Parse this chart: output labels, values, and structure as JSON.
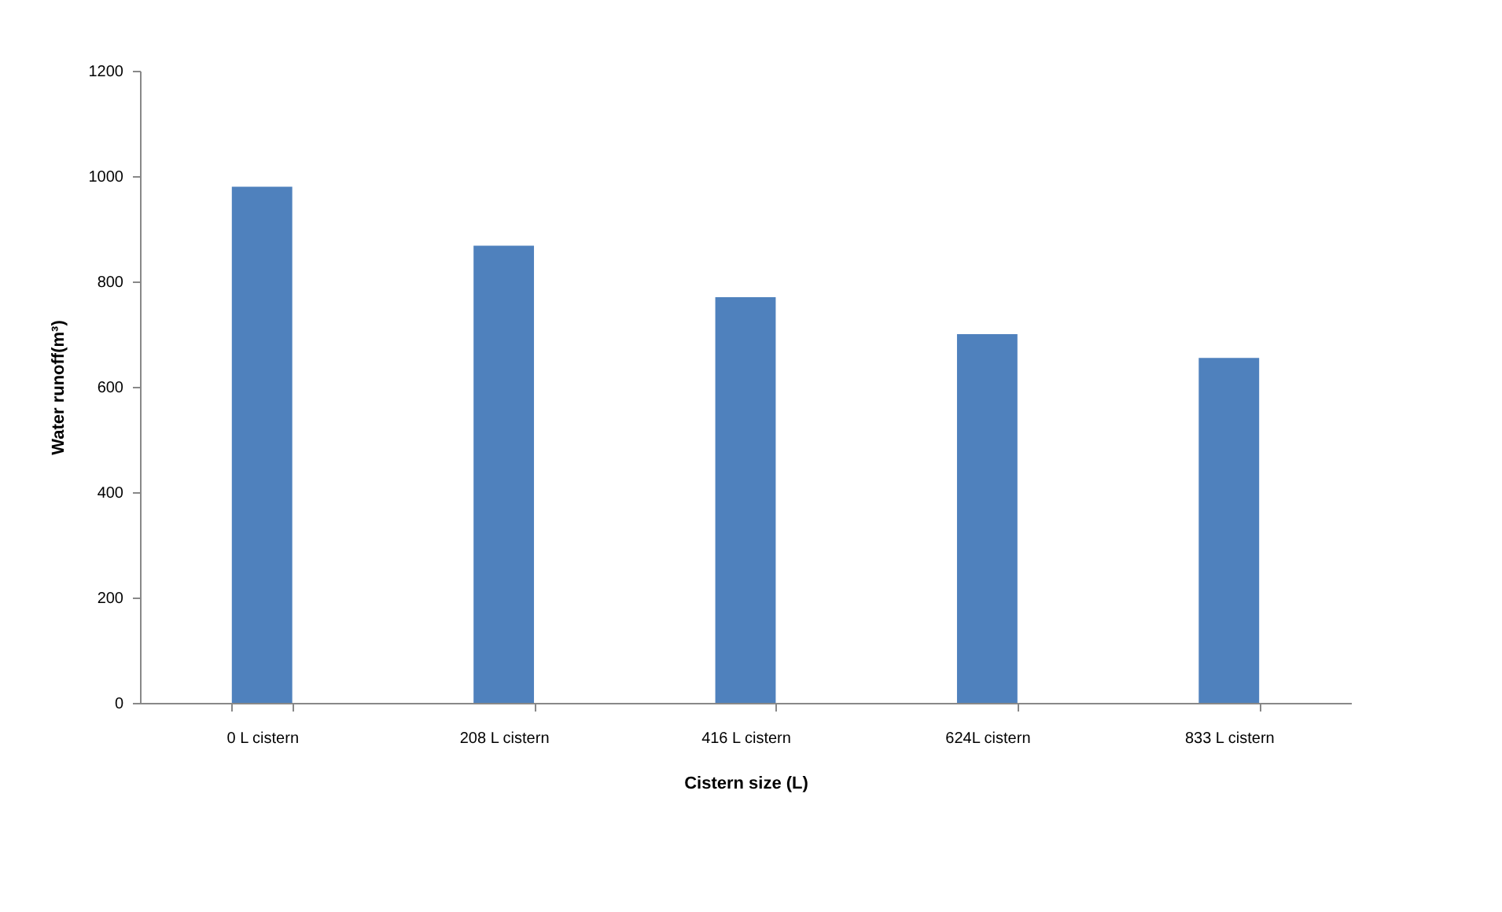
{
  "chart_data": {
    "type": "bar",
    "xlabel": "Cistern size (L)",
    "ylabel": "Water runoff(m³)",
    "categories": [
      "0 L cistern",
      "208 L cistern",
      "416 L cistern",
      "624L cistern",
      "833 L cistern"
    ],
    "values": [
      980,
      868,
      770,
      700,
      655
    ],
    "color": "#4f81bd",
    "ylim": [
      0,
      1200
    ],
    "yticks": [
      0,
      200,
      400,
      600,
      800,
      1000,
      1200
    ],
    "grid": false
  }
}
